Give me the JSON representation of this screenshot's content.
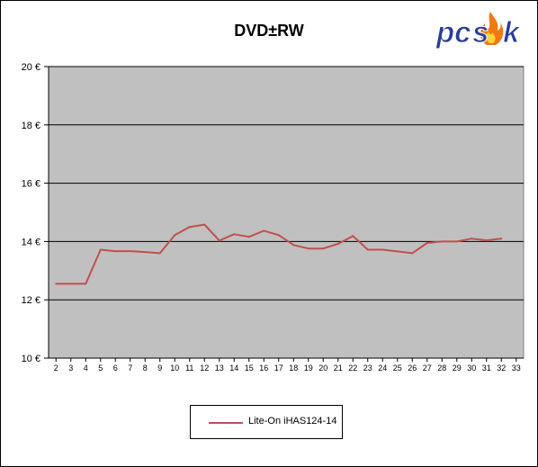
{
  "logo_text": "pcask",
  "colors": {
    "plot_background": "#c0c0c0",
    "gridline": "#000000",
    "series_line": "#c0504d",
    "logo_blue": "#2a3c9a",
    "logo_flame": "#f07a10"
  },
  "chart_data": {
    "type": "line",
    "title": "DVD±RW",
    "xlabel": "",
    "ylabel": "",
    "x_ticks": [
      "2",
      "3",
      "4",
      "5",
      "6",
      "7",
      "8",
      "9",
      "10",
      "11",
      "12",
      "13",
      "14",
      "15",
      "16",
      "17",
      "18",
      "19",
      "20",
      "21",
      "22",
      "23",
      "24",
      "25",
      "26",
      "27",
      "28",
      "29",
      "30",
      "31",
      "32",
      "33"
    ],
    "y_ticks": [
      "10 €",
      "12 €",
      "14 €",
      "16 €",
      "18 €",
      "20 €"
    ],
    "xlim": [
      1.5,
      33.5
    ],
    "ylim": [
      10,
      20
    ],
    "grid": true,
    "legend_position": "bottom",
    "series": [
      {
        "name": "Lite-On  iHAS124-14",
        "x": [
          2,
          3,
          4,
          5,
          6,
          7,
          8,
          9,
          10,
          11,
          12,
          13,
          14,
          15,
          16,
          17,
          18,
          19,
          20,
          21,
          22,
          23,
          24,
          25,
          26,
          27,
          28,
          29,
          30,
          31,
          32
        ],
        "values": [
          12.55,
          12.55,
          12.55,
          13.72,
          13.67,
          13.67,
          13.64,
          13.6,
          14.22,
          14.5,
          14.58,
          14.03,
          14.25,
          14.16,
          14.37,
          14.22,
          13.88,
          13.76,
          13.76,
          13.92,
          14.19,
          13.72,
          13.72,
          13.66,
          13.6,
          13.95,
          14.0,
          14.0,
          14.1,
          14.04,
          14.1
        ]
      }
    ]
  }
}
